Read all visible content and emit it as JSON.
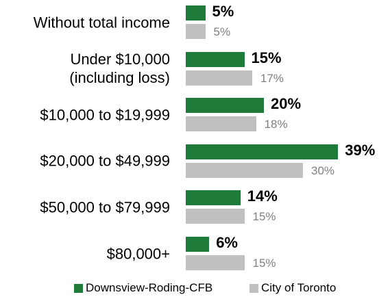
{
  "chart_data": {
    "type": "bar",
    "orientation": "horizontal",
    "categories": [
      "Without total income",
      "Under $10,000\n(including loss)",
      "$10,000 to $19,999",
      "$20,000 to $49,999",
      "$50,000 to $79,999",
      "$80,000+"
    ],
    "series": [
      {
        "name": "Downsview-Roding-CFB",
        "color": "#1e7b3a",
        "values": [
          5,
          15,
          20,
          39,
          14,
          6
        ],
        "value_labels": [
          "5%",
          "15%",
          "20%",
          "39%",
          "14%",
          "6%"
        ]
      },
      {
        "name": "City of Toronto",
        "color": "#c0c0c0",
        "values": [
          5,
          17,
          18,
          30,
          15,
          15
        ],
        "value_labels": [
          "5%",
          "17%",
          "18%",
          "30%",
          "15%",
          "15%"
        ]
      }
    ]
  }
}
